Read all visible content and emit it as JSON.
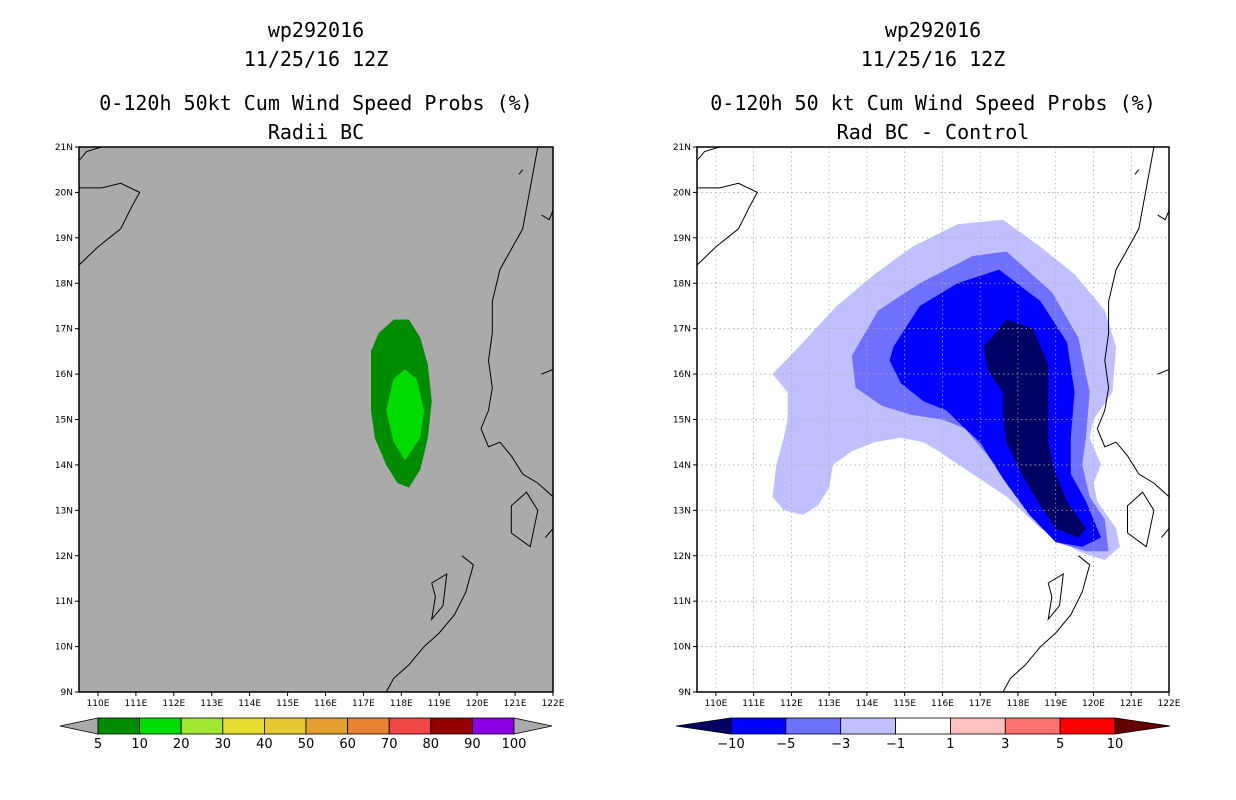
{
  "chart_data": [
    {
      "type": "heatmap",
      "storm_id": "wp292016",
      "datetime": "11/25/16 12Z",
      "title": "0-120h 50kt Cum Wind Speed Probs (%)",
      "subtitle": "Radii BC",
      "background": "#aaaaaa",
      "grid": false,
      "xlabel": "",
      "ylabel": "",
      "xlim": [
        109.5,
        122
      ],
      "ylim": [
        9,
        21
      ],
      "x_ticks": [
        "110E",
        "111E",
        "112E",
        "113E",
        "114E",
        "115E",
        "116E",
        "117E",
        "118E",
        "119E",
        "120E",
        "121E",
        "122E"
      ],
      "y_ticks": [
        "9N",
        "10N",
        "11N",
        "12N",
        "13N",
        "14N",
        "15N",
        "16N",
        "17N",
        "18N",
        "19N",
        "20N",
        "21N"
      ],
      "contours": [
        {
          "level": "5-10",
          "color": "#008c00",
          "polygon": [
            [
              117.4,
              16.9
            ],
            [
              117.8,
              17.2
            ],
            [
              118.2,
              17.2
            ],
            [
              118.5,
              16.8
            ],
            [
              118.7,
              16.2
            ],
            [
              118.8,
              15.4
            ],
            [
              118.7,
              14.6
            ],
            [
              118.5,
              13.9
            ],
            [
              118.2,
              13.5
            ],
            [
              117.9,
              13.6
            ],
            [
              117.6,
              14
            ],
            [
              117.3,
              14.6
            ],
            [
              117.2,
              15.2
            ],
            [
              117.2,
              16
            ],
            [
              117.2,
              16.5
            ]
          ]
        },
        {
          "level": "10-20",
          "color": "#00dc00",
          "polygon": [
            [
              117.8,
              15.9
            ],
            [
              118.1,
              16.1
            ],
            [
              118.4,
              15.9
            ],
            [
              118.6,
              15.2
            ],
            [
              118.5,
              14.6
            ],
            [
              118.1,
              14.1
            ],
            [
              117.8,
              14.5
            ],
            [
              117.6,
              15.2
            ]
          ]
        }
      ],
      "colorbar": {
        "labels": [
          "5",
          "10",
          "20",
          "30",
          "40",
          "50",
          "60",
          "70",
          "80",
          "90",
          "100"
        ],
        "colors": [
          "#aaaaaa",
          "#008c00",
          "#00dc00",
          "#a0e632",
          "#e6dc32",
          "#e6c832",
          "#e6a032",
          "#e68232",
          "#f04646",
          "#960000",
          "#8c00e6",
          "#aaaaaa"
        ]
      }
    },
    {
      "type": "heatmap",
      "storm_id": "wp292016",
      "datetime": "11/25/16 12Z",
      "title": "0-120h 50 kt Cum Wind Speed Probs (%)",
      "subtitle": "Rad BC - Control",
      "background": "#ffffff",
      "grid": true,
      "xlabel": "",
      "ylabel": "",
      "xlim": [
        109.5,
        122
      ],
      "ylim": [
        9,
        21
      ],
      "x_ticks": [
        "110E",
        "111E",
        "112E",
        "113E",
        "114E",
        "115E",
        "116E",
        "117E",
        "118E",
        "119E",
        "120E",
        "121E",
        "122E"
      ],
      "y_ticks": [
        "9N",
        "10N",
        "11N",
        "12N",
        "13N",
        "14N",
        "15N",
        "16N",
        "17N",
        "18N",
        "19N",
        "20N",
        "21N"
      ],
      "contours": [
        {
          "level": "-3 to -1",
          "color": "#c0c0ff",
          "polygon": [
            [
              111.5,
              16
            ],
            [
              112.2,
              16.6
            ],
            [
              113.2,
              17.5
            ],
            [
              114.2,
              18.2
            ],
            [
              115.2,
              18.8
            ],
            [
              116.4,
              19.3
            ],
            [
              117.6,
              19.4
            ],
            [
              118.6,
              18.8
            ],
            [
              119.5,
              18.2
            ],
            [
              120.3,
              17.4
            ],
            [
              120.6,
              16.6
            ],
            [
              120.5,
              15.6
            ],
            [
              120,
              15
            ],
            [
              119.9,
              14.6
            ],
            [
              120.2,
              14
            ],
            [
              120,
              13.6
            ],
            [
              120.1,
              13.2
            ],
            [
              120.6,
              12.6
            ],
            [
              120.7,
              12.2
            ],
            [
              120.3,
              11.9
            ],
            [
              119.6,
              12.1
            ],
            [
              118.6,
              12.6
            ],
            [
              117.7,
              13.3
            ],
            [
              116.8,
              13.8
            ],
            [
              115.9,
              14.3
            ],
            [
              115.5,
              14.5
            ],
            [
              114.9,
              14.6
            ],
            [
              114.2,
              14.5
            ],
            [
              113.6,
              14.3
            ],
            [
              113.1,
              14
            ],
            [
              113,
              13.5
            ],
            [
              112.7,
              13.1
            ],
            [
              112.3,
              12.9
            ],
            [
              111.8,
              13
            ],
            [
              111.5,
              13.3
            ],
            [
              111.6,
              14
            ],
            [
              111.8,
              14.6
            ],
            [
              111.9,
              15
            ],
            [
              111.9,
              15.6
            ]
          ]
        },
        {
          "level": "-5 to -3",
          "color": "#7070ff",
          "polygon": [
            [
              113.6,
              16.4
            ],
            [
              114.3,
              17.4
            ],
            [
              115.4,
              18
            ],
            [
              116.8,
              18.6
            ],
            [
              117.7,
              18.7
            ],
            [
              118.9,
              17.8
            ],
            [
              119.6,
              16.8
            ],
            [
              119.9,
              15.6
            ],
            [
              119.8,
              14.6
            ],
            [
              119.7,
              14
            ],
            [
              119.9,
              13.3
            ],
            [
              120.3,
              12.8
            ],
            [
              120.4,
              12.1
            ],
            [
              119.8,
              12.1
            ],
            [
              119,
              12.3
            ],
            [
              118.5,
              12.8
            ],
            [
              117.8,
              13.6
            ],
            [
              117.2,
              14.2
            ],
            [
              116.6,
              14.8
            ],
            [
              116,
              15
            ],
            [
              115.2,
              15.1
            ],
            [
              114.4,
              15.3
            ],
            [
              113.7,
              15.7
            ]
          ]
        },
        {
          "level": "-10 to -5",
          "color": "#0000ff",
          "polygon": [
            [
              114.7,
              16.6
            ],
            [
              115.4,
              17.5
            ],
            [
              116.4,
              18
            ],
            [
              117.5,
              18.3
            ],
            [
              118.6,
              17.6
            ],
            [
              119.3,
              16.7
            ],
            [
              119.5,
              15.6
            ],
            [
              119.4,
              14.6
            ],
            [
              119.4,
              13.8
            ],
            [
              119.8,
              13.2
            ],
            [
              120.2,
              12.4
            ],
            [
              119.7,
              12.2
            ],
            [
              119,
              12.3
            ],
            [
              118.3,
              12.9
            ],
            [
              117.6,
              13.7
            ],
            [
              117,
              14.5
            ],
            [
              116.6,
              14.8
            ],
            [
              116.1,
              15.2
            ],
            [
              115.5,
              15.4
            ],
            [
              114.9,
              15.8
            ],
            [
              114.6,
              16.3
            ]
          ]
        },
        {
          "level": "< -10",
          "color": "#000064",
          "polygon": [
            [
              117.1,
              16.6
            ],
            [
              117.7,
              17.2
            ],
            [
              118.4,
              17
            ],
            [
              118.8,
              16.2
            ],
            [
              118.8,
              15.3
            ],
            [
              118.8,
              14.5
            ],
            [
              119,
              13.8
            ],
            [
              119.3,
              13.2
            ],
            [
              119.8,
              12.6
            ],
            [
              119.6,
              12.4
            ],
            [
              119,
              12.6
            ],
            [
              118.6,
              13.1
            ],
            [
              118.1,
              13.8
            ],
            [
              117.7,
              14.5
            ],
            [
              117.6,
              15.1
            ],
            [
              117.6,
              15.6
            ],
            [
              117.2,
              16.1
            ]
          ]
        }
      ],
      "colorbar": {
        "labels": [
          "-10",
          "-5",
          "-3",
          "-1",
          "1",
          "3",
          "5",
          "10"
        ],
        "colors": [
          "#000064",
          "#0000ff",
          "#7070ff",
          "#c0c0ff",
          "#ffffff",
          "#ffc0c0",
          "#ff7070",
          "#ff0000",
          "#640000"
        ]
      }
    }
  ]
}
